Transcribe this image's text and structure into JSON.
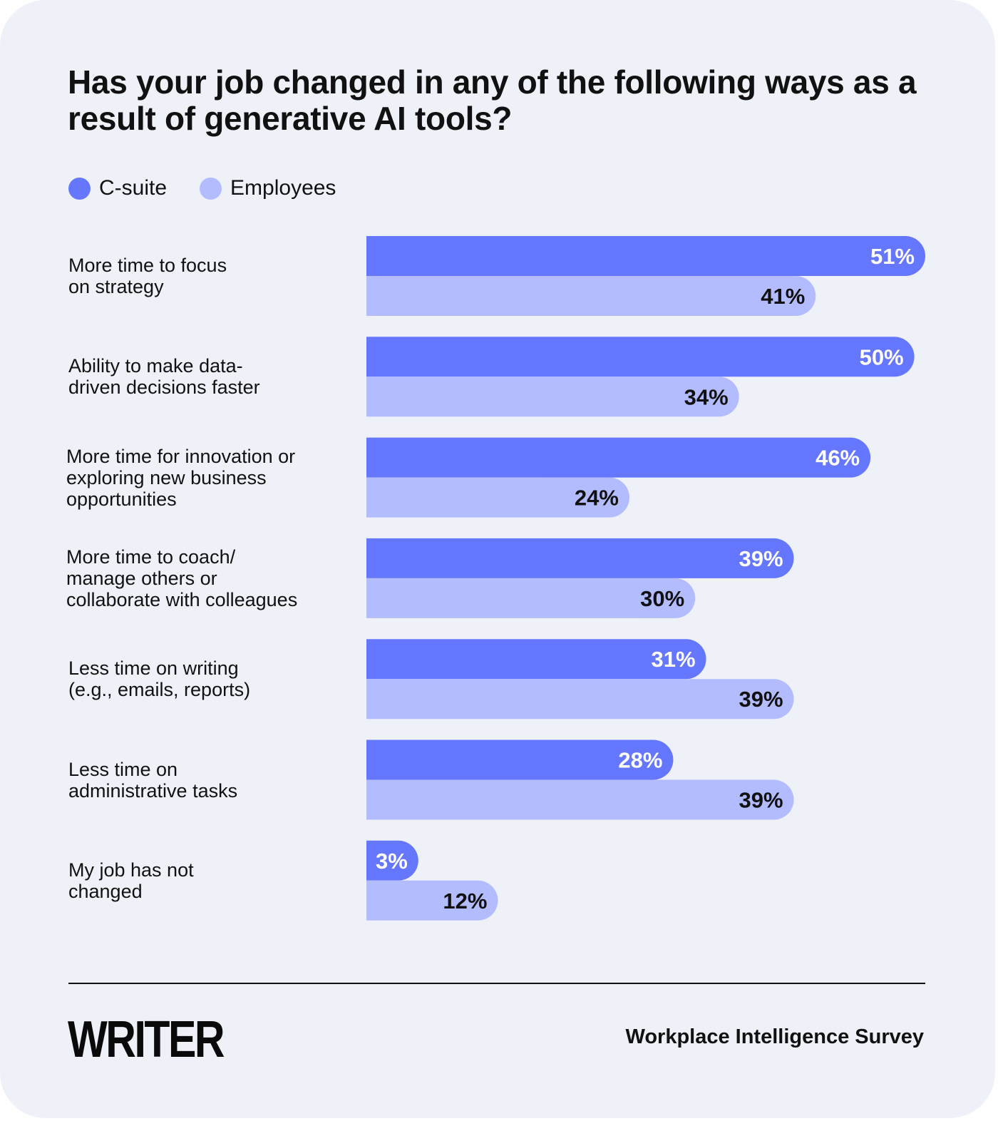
{
  "title": "Has your job changed in any of the following ways as a result of generative AI tools?",
  "legend": [
    {
      "label": "C-suite",
      "color": "#6677ff"
    },
    {
      "label": "Employees",
      "color": "#b3bcff"
    }
  ],
  "chart_data": {
    "type": "bar",
    "orientation": "horizontal",
    "title": "Has your job changed in any of the following ways as a result of generative AI tools?",
    "categories": [
      "More time to focus on strategy",
      "Ability to make data-driven decisions faster",
      "More time for innovation or exploring new business opportunities",
      "More time to coach/ manage others or collaborate with colleagues",
      "Less time on writing (e.g., emails, reports)",
      "Less time on administrative tasks",
      "My job has not changed"
    ],
    "category_lines": [
      [
        "More time to focus",
        "on strategy"
      ],
      [
        "Ability to make data-",
        "driven decisions faster"
      ],
      [
        "More time for innovation or",
        "exploring new business",
        "opportunities"
      ],
      [
        "More time to coach/",
        "manage others or",
        "collaborate with colleagues"
      ],
      [
        "Less time on writing",
        "(e.g., emails, reports)"
      ],
      [
        "Less time on",
        "administrative tasks"
      ],
      [
        "My job has not",
        "changed"
      ]
    ],
    "series": [
      {
        "name": "C-suite",
        "color": "#6677ff",
        "label_color": "#ffffff",
        "values": [
          51,
          50,
          46,
          39,
          31,
          28,
          3
        ]
      },
      {
        "name": "Employees",
        "color": "#b3bcff",
        "label_color": "#111111",
        "values": [
          41,
          34,
          24,
          30,
          39,
          39,
          12
        ]
      }
    ],
    "value_suffix": "%",
    "xlim": [
      0,
      51
    ],
    "grid": false,
    "legend_position": "top-left"
  },
  "footer": {
    "logo": "WRITER",
    "source": "Workplace Intelligence Survey"
  }
}
